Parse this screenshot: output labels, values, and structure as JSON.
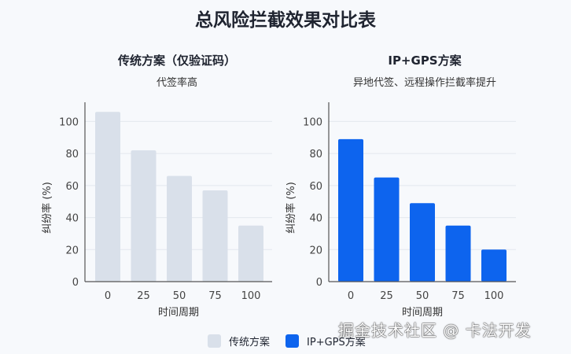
{
  "title": "总风险拦截效果对比表",
  "watermark": "掘金技术社区 @ 卡法开发",
  "chart_data": [
    {
      "type": "bar",
      "title": "传统方案（仅验证码）",
      "subtitle": "代签率高",
      "xlabel": "时间周期",
      "ylabel": "纠纷率 (%)",
      "categories": [
        "0",
        "25",
        "50",
        "75",
        "100"
      ],
      "values": [
        106,
        82,
        66,
        57,
        35
      ],
      "yticks": [
        0,
        20,
        40,
        60,
        80,
        100
      ],
      "ylim": [
        0,
        112
      ],
      "grid": true,
      "color": "#d9e0ea"
    },
    {
      "type": "bar",
      "title": "IP+GPS方案",
      "subtitle": "异地代签、远程操作拦截率提升",
      "xlabel": "时间周期",
      "ylabel": "纠纷率 (%)",
      "categories": [
        "0",
        "25",
        "50",
        "75",
        "100"
      ],
      "values": [
        89,
        65,
        49,
        35,
        20
      ],
      "yticks": [
        0,
        20,
        40,
        60,
        80,
        100
      ],
      "ylim": [
        0,
        112
      ],
      "grid": true,
      "color": "#0d64ee"
    }
  ],
  "legend": {
    "placement": "bottom",
    "items": [
      {
        "label": "传统方案",
        "color": "#d9e0ea"
      },
      {
        "label": "IP+GPS方案",
        "color": "#0d64ee"
      }
    ]
  }
}
